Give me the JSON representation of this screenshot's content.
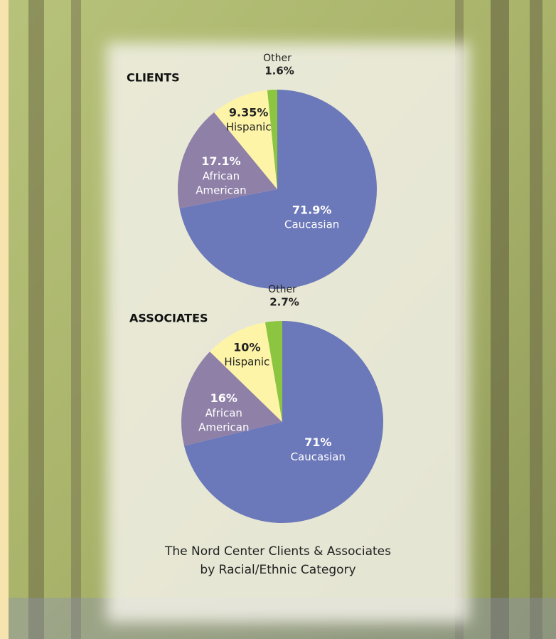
{
  "chart_data": [
    {
      "type": "pie",
      "title": "CLIENTS",
      "categories": [
        "Caucasian",
        "African American",
        "Hispanic",
        "Other"
      ],
      "values": [
        71.9,
        17.1,
        9.35,
        1.6
      ],
      "value_labels": [
        "71.9%",
        "17.1%",
        "9.35%",
        "1.6%"
      ],
      "colors": [
        "#6b78b9",
        "#8f80a8",
        "#fdf4a8",
        "#8cc540"
      ]
    },
    {
      "type": "pie",
      "title": "ASSOCIATES",
      "categories": [
        "Caucasian",
        "African American",
        "Hispanic",
        "Other"
      ],
      "values": [
        71,
        16,
        10,
        2.7
      ],
      "value_labels": [
        "71%",
        "16%",
        "10%",
        "2.7%"
      ],
      "colors": [
        "#6b78b9",
        "#8f80a8",
        "#fdf4a8",
        "#8cc540"
      ]
    }
  ],
  "caption": [
    "The Nord Center Clients & Associates",
    "by Racial/Ethnic Category"
  ]
}
